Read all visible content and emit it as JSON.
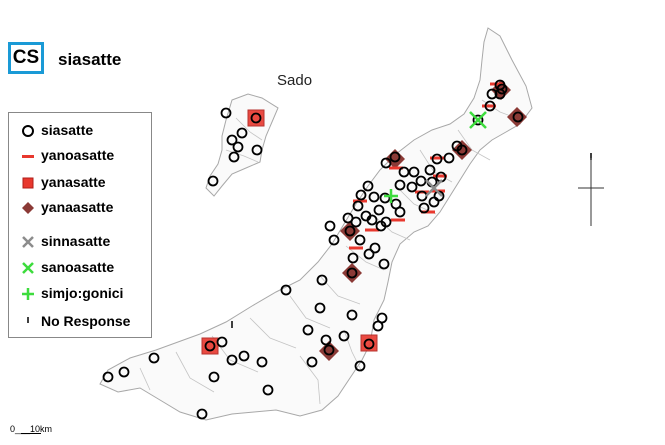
{
  "header": {
    "code": "CS",
    "title": "siasatte"
  },
  "map": {
    "island_label": "Sado"
  },
  "colors": {
    "circle": "#000000",
    "red": "#e8382e",
    "diamond": "#8b3a36",
    "gray": "#8c8c8c",
    "green": "#3ddc3d",
    "boundary": "#b9b9b9"
  },
  "legend": {
    "items": [
      {
        "key": "siasatte",
        "label": "siasatte",
        "icon": "open-circle-icon"
      },
      {
        "key": "yanoasatte",
        "label": "yanoasatte",
        "icon": "red-dash-icon"
      },
      {
        "key": "yanasatte",
        "label": "yanasatte",
        "icon": "red-square-icon"
      },
      {
        "key": "yanaasatte",
        "label": "yanaasatte",
        "icon": "brown-diamond-icon"
      },
      {
        "key": "sinnasatte",
        "label": "sinnasatte",
        "icon": "gray-x-icon"
      },
      {
        "key": "sanoasatte",
        "label": "sanoasatte",
        "icon": "green-x-icon"
      },
      {
        "key": "simjo_gonici",
        "label": "simjo:gonici",
        "icon": "green-plus-icon"
      },
      {
        "key": "no_response",
        "label": "No Response",
        "icon": "tick-icon"
      }
    ]
  },
  "scale": {
    "text": "0___10km"
  }
}
